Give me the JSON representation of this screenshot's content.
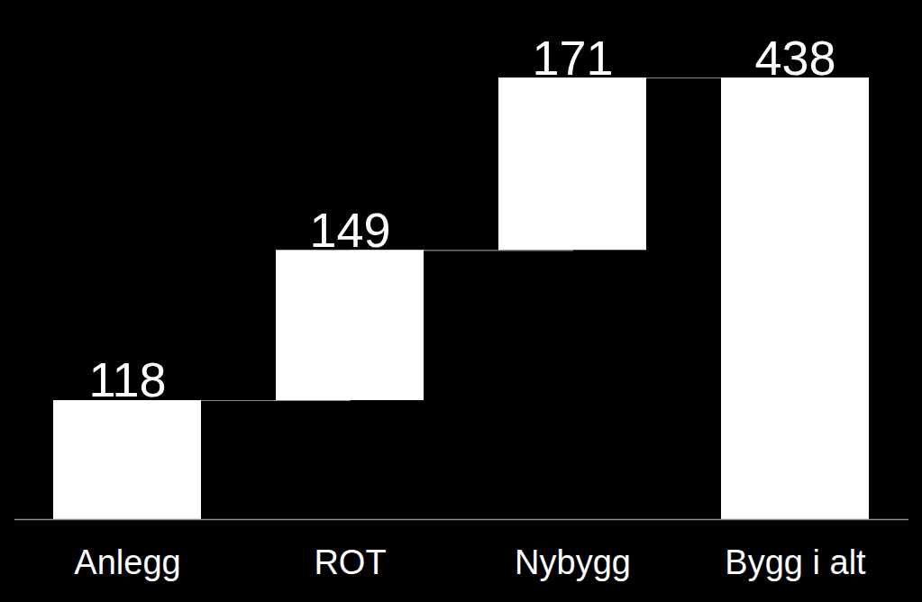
{
  "chart_data": {
    "type": "waterfall",
    "categories": [
      "Anlegg",
      "ROT",
      "Nybygg",
      "Bygg i alt"
    ],
    "values": [
      118,
      149,
      171,
      438
    ],
    "color": "#ffffff",
    "ylim": [
      0,
      438
    ],
    "data_labels": true,
    "tick_labels": "x",
    "grid": false
  }
}
